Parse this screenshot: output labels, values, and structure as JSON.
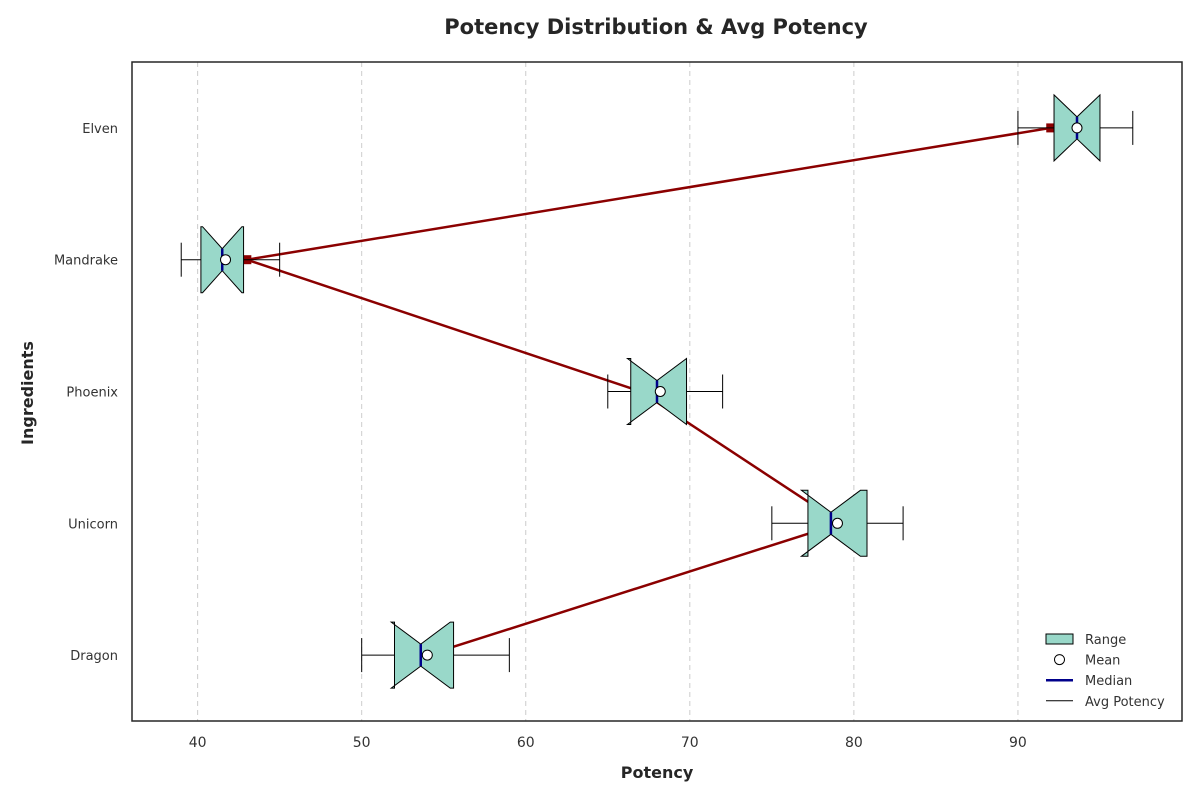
{
  "chart_data": {
    "type": "box",
    "orientation": "horizontal",
    "title": "Potency Distribution & Avg Potency",
    "xlabel": "Potency",
    "ylabel": "Ingredients",
    "xlim": [
      36,
      100
    ],
    "xticks": [
      40,
      50,
      60,
      70,
      80,
      90
    ],
    "grid": "x-dashed",
    "categories": [
      "Dragon",
      "Unicorn",
      "Phoenix",
      "Mandrake",
      "Elven"
    ],
    "boxes": [
      {
        "category": "Dragon",
        "whisker_low": 50,
        "q1": 52,
        "median": 53.6,
        "q3": 55.6,
        "whisker_high": 59,
        "notch_low": 51.8,
        "notch_high": 55.4,
        "mean": 54
      },
      {
        "category": "Unicorn",
        "whisker_low": 75,
        "q1": 77.2,
        "median": 78.6,
        "q3": 80.8,
        "whisker_high": 83,
        "notch_low": 76.8,
        "notch_high": 80.4,
        "mean": 79
      },
      {
        "category": "Phoenix",
        "whisker_low": 65,
        "q1": 66.4,
        "median": 68,
        "q3": 69.8,
        "whisker_high": 72,
        "notch_low": 66.2,
        "notch_high": 69.8,
        "mean": 68.2
      },
      {
        "category": "Mandrake",
        "whisker_low": 39,
        "q1": 40.2,
        "median": 41.5,
        "q3": 42.8,
        "whisker_high": 45,
        "notch_low": 40.3,
        "notch_high": 42.7,
        "mean": 41.7
      },
      {
        "category": "Elven",
        "whisker_low": 90,
        "q1": 92.2,
        "median": 93.6,
        "q3": 95,
        "whisker_high": 97,
        "notch_low": 92.2,
        "notch_high": 95,
        "mean": 93.6
      }
    ],
    "avg_line": {
      "name": "Avg Potency",
      "values": [
        54,
        79.2,
        67,
        43,
        92
      ]
    },
    "legend": {
      "position": "bottom-right",
      "entries": [
        "Range",
        "Mean",
        "Median",
        "Avg Potency"
      ]
    },
    "colors": {
      "box_fill": "#99d8c9",
      "box_edge": "#000000",
      "median": "#00008b",
      "avg_line": "#8b0000",
      "mean_fill": "#ffffff",
      "grid": "#cccccc"
    }
  }
}
